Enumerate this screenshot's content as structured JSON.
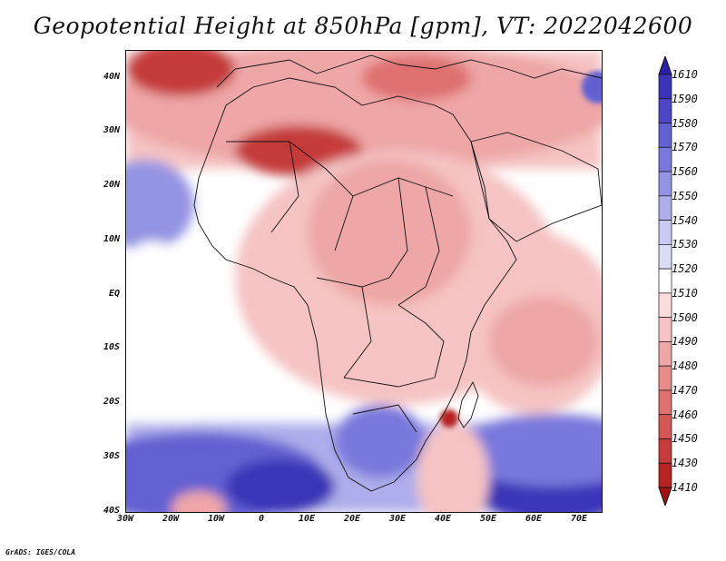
{
  "title": "Geopotential Height at 850hPa [gpm], VT: 2022042600",
  "credit": "GrADS: IGES/COLA",
  "y_ticks": [
    "40N",
    "30N",
    "20N",
    "10N",
    "EQ",
    "10S",
    "20S",
    "30S",
    "40S"
  ],
  "x_ticks": [
    "30W",
    "20W",
    "10W",
    "0",
    "10E",
    "20E",
    "30E",
    "40E",
    "50E",
    "60E",
    "70E"
  ],
  "colorbar": {
    "labels": [
      "1610",
      "1590",
      "1580",
      "1570",
      "1560",
      "1550",
      "1540",
      "1530",
      "1520",
      "1510",
      "1500",
      "1490",
      "1480",
      "1470",
      "1460",
      "1450",
      "1430",
      "1410"
    ],
    "colors": [
      "#2a21a8",
      "#3b34b7",
      "#4d47c5",
      "#6361d1",
      "#7978dc",
      "#9494e4",
      "#adadeb",
      "#c8c8f1",
      "#dcdcf5",
      "#ffffff",
      "#fbdcdc",
      "#f5c3c3",
      "#eea6a6",
      "#e78b8b",
      "#df7070",
      "#d45757",
      "#c53a3a",
      "#b52323",
      "#a11111"
    ]
  },
  "map": {
    "lon_range": [
      -30,
      75
    ],
    "lat_range": [
      -40,
      45
    ],
    "field": "Geopotential Height 850hPa",
    "units": "gpm"
  }
}
